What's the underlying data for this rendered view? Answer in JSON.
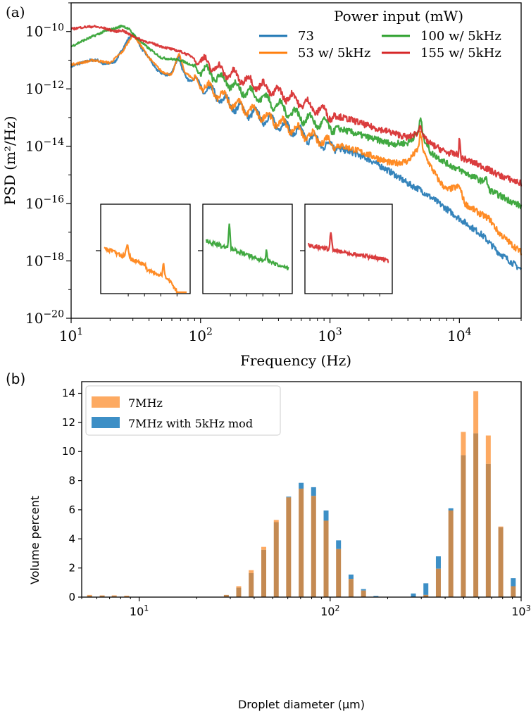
{
  "panel_a": {
    "label": "(a)",
    "ylabel": "PSD (m²/Hz)",
    "xlabel": "Frequency (Hz)",
    "legend_title": "Power input (mW)",
    "x_ticks": [
      {
        "base": "10",
        "exp": "1"
      },
      {
        "base": "10",
        "exp": "2"
      },
      {
        "base": "10",
        "exp": "3"
      },
      {
        "base": "10",
        "exp": "4"
      }
    ],
    "y_ticks": [
      {
        "base": "10",
        "exp": "−10"
      },
      {
        "base": "10",
        "exp": "−12"
      },
      {
        "base": "10",
        "exp": "−14"
      },
      {
        "base": "10",
        "exp": "−16"
      },
      {
        "base": "10",
        "exp": "−18"
      },
      {
        "base": "10",
        "exp": "−20"
      }
    ]
  },
  "panel_b": {
    "label": "(b)",
    "ylabel": "Volume percent",
    "xlabel": "Droplet diameter (µm)",
    "x_ticks": [
      {
        "base": "10",
        "exp": "1"
      },
      {
        "base": "10",
        "exp": "2"
      },
      {
        "base": "10",
        "exp": "3"
      }
    ],
    "y_ticks": [
      "0",
      "2",
      "4",
      "6",
      "8",
      "10",
      "12",
      "14"
    ]
  },
  "colors": {
    "blue": "#1f77b4",
    "orange": "#ff7f0e",
    "green": "#2ca02c",
    "red": "#d62728",
    "bar_orange": "#fdaa62",
    "bar_blue": "#3d8fc6",
    "bar_overlap": "#c48a52"
  },
  "chart_data": [
    {
      "type": "line",
      "title": "",
      "xlabel": "Frequency (Hz)",
      "ylabel": "PSD (m²/Hz)",
      "xscale": "log",
      "yscale": "log",
      "xlim": [
        10,
        30000
      ],
      "ylim": [
        1e-20,
        1e-09
      ],
      "legend_title": "Power input (mW)",
      "legend_loc": "upper right",
      "series": [
        {
          "name": "73",
          "color": "#1f77b4",
          "points": [
            [
              10,
              6e-12
            ],
            [
              12,
              8e-12
            ],
            [
              14,
              1e-11
            ],
            [
              16,
              1e-11
            ],
            [
              18,
              7e-12
            ],
            [
              20,
              8e-12
            ],
            [
              22,
              9e-12
            ],
            [
              25,
              2.5e-11
            ],
            [
              28,
              6e-11
            ],
            [
              30,
              8e-11
            ],
            [
              32,
              6e-11
            ],
            [
              35,
              2.5e-11
            ],
            [
              40,
              1.2e-11
            ],
            [
              45,
              5e-12
            ],
            [
              50,
              3.5e-12
            ],
            [
              55,
              3e-12
            ],
            [
              60,
              3.5e-12
            ],
            [
              68,
              1.5e-11
            ],
            [
              72,
              5e-12
            ],
            [
              80,
              2e-12
            ],
            [
              90,
              2e-12
            ],
            [
              100,
              1.2e-12
            ],
            [
              120,
              8e-13
            ],
            [
              150,
              4e-13
            ],
            [
              200,
              2e-13
            ],
            [
              300,
              1e-13
            ],
            [
              500,
              4e-14
            ],
            [
              700,
              2e-14
            ],
            [
              1000,
              1e-14
            ],
            [
              1500,
              6e-15
            ],
            [
              2000,
              3.5e-15
            ],
            [
              3000,
              1.2e-15
            ],
            [
              4000,
              5e-16
            ],
            [
              5000,
              3e-16
            ],
            [
              7000,
              1e-16
            ],
            [
              10000,
              3e-17
            ],
            [
              15000,
              8e-18
            ],
            [
              20000,
              2e-18
            ],
            [
              30000,
              5e-19
            ]
          ]
        },
        {
          "name": "53 w/ 5kHz",
          "color": "#ff7f0e",
          "points": [
            [
              10,
              7e-12
            ],
            [
              15,
              1e-11
            ],
            [
              20,
              8e-12
            ],
            [
              25,
              2e-11
            ],
            [
              30,
              8e-11
            ],
            [
              35,
              3e-11
            ],
            [
              40,
              1.2e-11
            ],
            [
              50,
              4e-12
            ],
            [
              60,
              3e-12
            ],
            [
              68,
              1.8e-11
            ],
            [
              75,
              4e-12
            ],
            [
              90,
              2e-12
            ],
            [
              100,
              1.5e-12
            ],
            [
              150,
              5e-13
            ],
            [
              200,
              2.5e-13
            ],
            [
              300,
              1.2e-13
            ],
            [
              500,
              4.5e-14
            ],
            [
              700,
              2.2e-14
            ],
            [
              1000,
              1.3e-14
            ],
            [
              1500,
              8e-15
            ],
            [
              2000,
              5e-15
            ],
            [
              3000,
              2.5e-15
            ],
            [
              4000,
              3e-15
            ],
            [
              4800,
              8e-15
            ],
            [
              5000,
              3e-14
            ],
            [
              5300,
              6e-15
            ],
            [
              6000,
              2e-15
            ],
            [
              7000,
              6e-16
            ],
            [
              8000,
              3e-16
            ],
            [
              10000,
              4e-16
            ],
            [
              11000,
              1e-16
            ],
            [
              13000,
              6e-17
            ],
            [
              15000,
              4e-17
            ],
            [
              17000,
              3e-17
            ],
            [
              20000,
              1e-17
            ],
            [
              25000,
              4e-18
            ],
            [
              30000,
              2e-18
            ]
          ]
        },
        {
          "name": "100 w/ 5kHz",
          "color": "#2ca02c",
          "points": [
            [
              10,
              3e-11
            ],
            [
              12,
              4.5e-11
            ],
            [
              15,
              7e-11
            ],
            [
              18,
              1e-10
            ],
            [
              22,
              1.3e-10
            ],
            [
              25,
              1.6e-10
            ],
            [
              28,
              1.2e-10
            ],
            [
              32,
              6e-11
            ],
            [
              40,
              2.5e-11
            ],
            [
              50,
              1.2e-11
            ],
            [
              70,
              1e-11
            ],
            [
              100,
              5e-12
            ],
            [
              150,
              2e-12
            ],
            [
              200,
              1e-12
            ],
            [
              300,
              5e-13
            ],
            [
              500,
              1.5e-13
            ],
            [
              700,
              8e-14
            ],
            [
              1000,
              5e-14
            ],
            [
              1500,
              3e-14
            ],
            [
              2000,
              2e-14
            ],
            [
              3000,
              1.2e-14
            ],
            [
              4000,
              1.3e-14
            ],
            [
              4800,
              3e-14
            ],
            [
              5000,
              1e-13
            ],
            [
              5300,
              2e-14
            ],
            [
              6000,
              6e-15
            ],
            [
              8000,
              2.5e-15
            ],
            [
              10000,
              1.5e-15
            ],
            [
              15000,
              6e-16
            ],
            [
              16000,
              8e-16
            ],
            [
              17000,
              3e-16
            ],
            [
              20000,
              2e-16
            ],
            [
              30000,
              8e-17
            ]
          ]
        },
        {
          "name": "155 w/ 5kHz",
          "color": "#d62728",
          "points": [
            [
              10,
              1.2e-10
            ],
            [
              12,
              1.4e-10
            ],
            [
              15,
              1.5e-10
            ],
            [
              18,
              1.3e-10
            ],
            [
              22,
              1e-10
            ],
            [
              25,
              1.1e-10
            ],
            [
              28,
              8e-11
            ],
            [
              35,
              5e-11
            ],
            [
              50,
              3e-11
            ],
            [
              70,
              2e-11
            ],
            [
              100,
              1e-11
            ],
            [
              150,
              4e-12
            ],
            [
              200,
              2.5e-12
            ],
            [
              300,
              1.2e-12
            ],
            [
              500,
              5e-13
            ],
            [
              700,
              2.5e-13
            ],
            [
              1000,
              1.3e-13
            ],
            [
              1500,
              8e-14
            ],
            [
              2000,
              5e-14
            ],
            [
              3000,
              3e-14
            ],
            [
              4000,
              2e-14
            ],
            [
              4800,
              3e-14
            ],
            [
              5000,
              6e-14
            ],
            [
              5300,
              2e-14
            ],
            [
              6000,
              1.2e-14
            ],
            [
              8000,
              6e-15
            ],
            [
              9800,
              5e-15
            ],
            [
              10000,
              2e-14
            ],
            [
              10300,
              4e-15
            ],
            [
              15000,
              2e-15
            ],
            [
              20000,
              1e-15
            ],
            [
              30000,
              5e-16
            ]
          ]
        }
      ]
    },
    {
      "type": "bar",
      "title": "",
      "xlabel": "Droplet diameter (µm)",
      "ylabel": "Volume percent",
      "xscale": "log",
      "xlim": [
        5,
        1000
      ],
      "ylim": [
        0,
        14.8
      ],
      "legend_loc": "upper left",
      "x": [
        5.5,
        6.4,
        7.4,
        8.6,
        10,
        11.6,
        13.5,
        15.7,
        18.2,
        21.2,
        24.6,
        28.6,
        33.2,
        38.6,
        44.9,
        52.2,
        60.6,
        70.5,
        81.9,
        95.2,
        110.6,
        128.6,
        149.5,
        173.7,
        201.9,
        234.7,
        272.8,
        317.1,
        368.6,
        428.5,
        498.1,
        578.9,
        672.9,
        782.2,
        909.2,
        1000
      ],
      "series": [
        {
          "name": "7MHz",
          "color": "#ff7f0e",
          "values": [
            0.15,
            0.12,
            0.12,
            0.1,
            0,
            0,
            0,
            0,
            0,
            0,
            0,
            0.15,
            0.75,
            1.85,
            3.45,
            5.3,
            6.85,
            7.45,
            6.95,
            5.25,
            3.3,
            1.25,
            0.45,
            0,
            0,
            0,
            0,
            0.15,
            1.95,
            5.95,
            11.35,
            14.15,
            11.1,
            4.85,
            0.75,
            0
          ]
        },
        {
          "name": "7MHz with 5kHz mod",
          "color": "#1f77b4",
          "values": [
            0.1,
            0.1,
            0.08,
            0.05,
            0,
            0,
            0,
            0,
            0,
            0,
            0,
            0.15,
            0.65,
            1.65,
            3.25,
            5.15,
            6.9,
            7.85,
            7.55,
            5.95,
            3.9,
            1.55,
            0.55,
            0.08,
            0,
            0,
            0.25,
            0.95,
            2.8,
            6.1,
            9.75,
            11.25,
            9.15,
            4.8,
            1.3,
            0
          ]
        }
      ]
    }
  ]
}
